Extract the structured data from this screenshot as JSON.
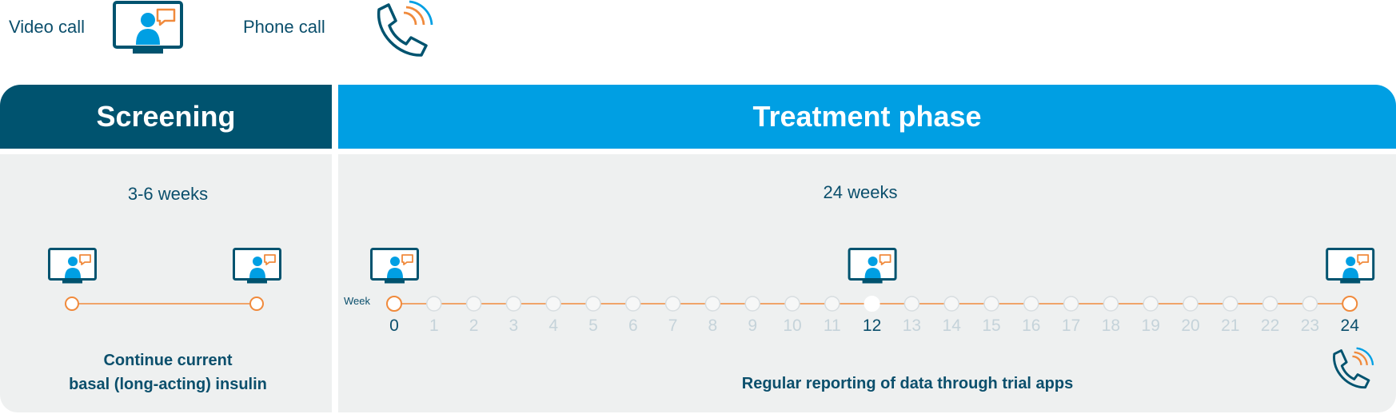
{
  "legend": {
    "video_label": "Video call",
    "phone_label": "Phone call",
    "video_icon": "monitor-video-call-icon",
    "phone_icon": "phone-call-icon"
  },
  "screening": {
    "title": "Screening",
    "duration": "3-6 weeks",
    "caption_line1": "Continue current",
    "caption_line2": "basal (long-acting) insulin"
  },
  "treatment": {
    "title": "Treatment phase",
    "duration": "24 weeks",
    "week_label": "Week",
    "weeks": [
      "0",
      "1",
      "2",
      "3",
      "4",
      "5",
      "6",
      "7",
      "8",
      "9",
      "10",
      "11",
      "12",
      "13",
      "14",
      "15",
      "16",
      "17",
      "18",
      "19",
      "20",
      "21",
      "22",
      "23",
      "24"
    ],
    "video_call_weeks": [
      0,
      12,
      24
    ],
    "highlight_weeks": [
      0,
      12,
      24
    ],
    "phone_call_week": 24,
    "caption": "Regular reporting of data through trial apps"
  },
  "colors": {
    "dark_blue": "#00536f",
    "bright_blue": "#009fe3",
    "orange": "#f08a3c",
    "panel_bg": "#eef0f0",
    "faded_week": "#c5d3da",
    "text_dark": "#0b4f6c"
  }
}
